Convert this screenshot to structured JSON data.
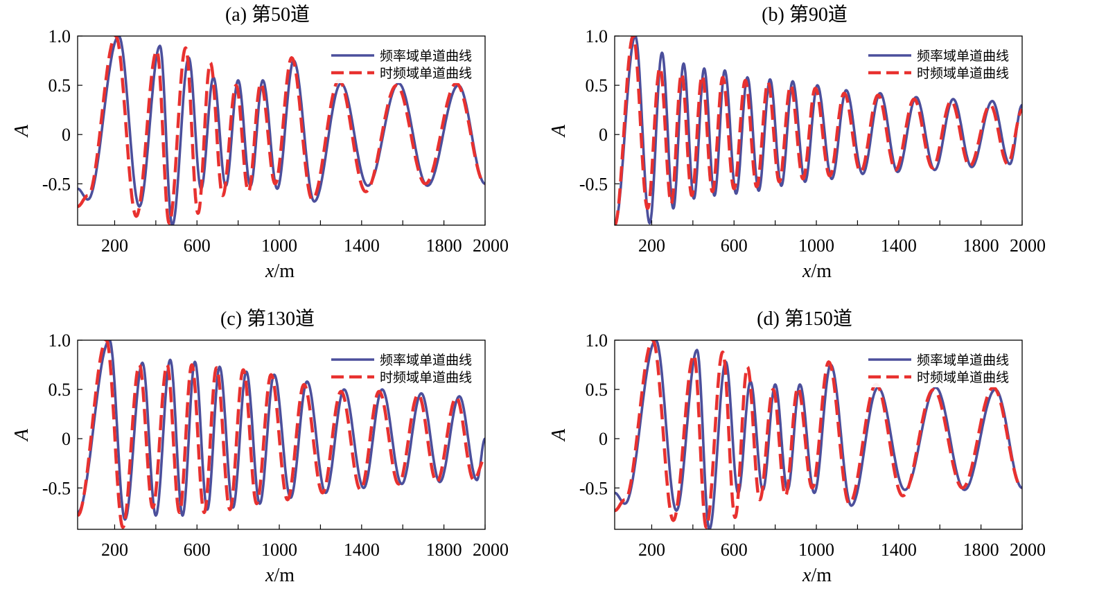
{
  "colors": {
    "freq_series": "#4b4f9c",
    "timefreq_series": "#e8312f",
    "axis": "#000000",
    "background": "#ffffff"
  },
  "chart_data": [
    {
      "type": "line",
      "title": "(a) 第50道",
      "xlabel": "x/m",
      "xlabel_var": "x",
      "xlabel_unit": "/m",
      "ylabel": "A",
      "xlim": [
        20,
        2000
      ],
      "ylim": [
        -0.92,
        1.0
      ],
      "xticks": [
        200,
        600,
        1000,
        1400,
        1800,
        2000
      ],
      "xticks_minor": [
        400,
        800,
        1200,
        1600
      ],
      "yticks": [
        1.0,
        0.5,
        0,
        -0.5
      ],
      "ytick_labels": [
        "1.0",
        "0.5",
        "0",
        "-0.5"
      ],
      "legend_position": "top-right",
      "series": [
        {
          "name": "频率域单道曲线",
          "style": "solid",
          "x": [
            20,
            70,
            220,
            320,
            420,
            480,
            560,
            620,
            680,
            740,
            800,
            860,
            920,
            990,
            1070,
            1170,
            1300,
            1430,
            1580,
            1720,
            1870,
            2000
          ],
          "y": [
            -0.55,
            -0.66,
            1.0,
            -0.73,
            0.9,
            -0.92,
            0.78,
            -0.55,
            0.58,
            -0.52,
            0.55,
            -0.52,
            0.55,
            -0.55,
            0.75,
            -0.68,
            0.52,
            -0.52,
            0.52,
            -0.52,
            0.5,
            -0.5
          ]
        },
        {
          "name": "时频域单道曲线",
          "style": "dashed",
          "x": [
            20,
            70,
            205,
            305,
            405,
            465,
            545,
            605,
            665,
            725,
            790,
            850,
            910,
            980,
            1060,
            1160,
            1290,
            1420,
            1570,
            1710,
            1860,
            2000
          ],
          "y": [
            -0.73,
            -0.62,
            1.0,
            -0.83,
            0.85,
            -0.9,
            0.88,
            -0.8,
            0.73,
            -0.62,
            0.5,
            -0.58,
            0.52,
            -0.5,
            0.78,
            -0.66,
            0.55,
            -0.58,
            0.5,
            -0.5,
            0.52,
            -0.5
          ]
        }
      ]
    },
    {
      "type": "line",
      "title": "(b) 第90道",
      "xlabel": "x/m",
      "xlabel_var": "x",
      "xlabel_unit": "/m",
      "ylabel": "A",
      "xlim": [
        20,
        2000
      ],
      "ylim": [
        -0.92,
        1.0
      ],
      "xticks": [
        200,
        600,
        1000,
        1400,
        1800,
        2000
      ],
      "xticks_minor": [
        400,
        800,
        1200,
        1600
      ],
      "yticks": [
        1.0,
        0.5,
        0,
        -0.5
      ],
      "ytick_labels": [
        "1.0",
        "0.5",
        "0",
        "-0.5"
      ],
      "legend_position": "top-right",
      "series": [
        {
          "name": "频率域单道曲线",
          "style": "solid",
          "x": [
            20,
            120,
            190,
            250,
            305,
            355,
            405,
            455,
            505,
            555,
            610,
            665,
            720,
            775,
            830,
            885,
            945,
            1005,
            1075,
            1145,
            1225,
            1310,
            1395,
            1485,
            1575,
            1665,
            1755,
            1855,
            1940,
            2000
          ],
          "y": [
            -0.92,
            1.0,
            -0.9,
            0.83,
            -0.75,
            0.72,
            -0.65,
            0.67,
            -0.62,
            0.65,
            -0.6,
            0.58,
            -0.57,
            0.56,
            -0.52,
            0.54,
            -0.48,
            0.5,
            -0.45,
            0.45,
            -0.4,
            0.42,
            -0.38,
            0.38,
            -0.36,
            0.36,
            -0.33,
            0.34,
            -0.3,
            0.3
          ]
        },
        {
          "name": "时频域单道曲线",
          "style": "dashed",
          "x": [
            20,
            110,
            180,
            240,
            295,
            345,
            395,
            445,
            495,
            545,
            600,
            655,
            710,
            765,
            820,
            875,
            935,
            995,
            1065,
            1135,
            1215,
            1300,
            1385,
            1475,
            1565,
            1655,
            1745,
            1845,
            1930,
            2000
          ],
          "y": [
            -0.92,
            1.0,
            -0.75,
            0.68,
            -0.7,
            0.62,
            -0.62,
            0.6,
            -0.58,
            0.58,
            -0.55,
            0.55,
            -0.53,
            0.53,
            -0.48,
            0.5,
            -0.45,
            0.47,
            -0.42,
            0.42,
            -0.38,
            0.4,
            -0.36,
            0.36,
            -0.34,
            0.34,
            -0.32,
            0.3,
            -0.3,
            0.25
          ]
        }
      ]
    },
    {
      "type": "line",
      "title": "(c) 第130道",
      "xlabel": "x/m",
      "xlabel_var": "x",
      "xlabel_unit": "/m",
      "ylabel": "A",
      "xlim": [
        20,
        2000
      ],
      "ylim": [
        -0.92,
        1.0
      ],
      "xticks": [
        200,
        600,
        1000,
        1400,
        1800,
        2000
      ],
      "xticks_minor": [
        400,
        800,
        1200,
        1600
      ],
      "yticks": [
        1.0,
        0.5,
        0,
        -0.5
      ],
      "ytick_labels": [
        "1.0",
        "0.5",
        "0",
        "-0.5"
      ],
      "legend_position": "top-right",
      "series": [
        {
          "name": "频率域单道曲线",
          "style": "solid",
          "x": [
            20,
            175,
            250,
            335,
            400,
            470,
            530,
            590,
            650,
            710,
            775,
            840,
            905,
            975,
            1055,
            1135,
            1225,
            1315,
            1410,
            1500,
            1595,
            1690,
            1780,
            1875,
            1960,
            2000
          ],
          "y": [
            -0.75,
            1.0,
            -0.82,
            0.77,
            -0.78,
            0.8,
            -0.78,
            0.78,
            -0.72,
            0.73,
            -0.7,
            0.68,
            -0.66,
            0.65,
            -0.6,
            0.58,
            -0.55,
            0.5,
            -0.5,
            0.5,
            -0.46,
            0.46,
            -0.44,
            0.43,
            -0.42,
            0.0
          ]
        },
        {
          "name": "时频域单道曲线",
          "style": "dashed",
          "x": [
            20,
            160,
            240,
            320,
            385,
            455,
            515,
            575,
            635,
            695,
            760,
            825,
            890,
            960,
            1040,
            1120,
            1210,
            1300,
            1395,
            1485,
            1580,
            1675,
            1765,
            1860,
            1945,
            2000
          ],
          "y": [
            -0.78,
            1.0,
            -0.9,
            0.75,
            -0.7,
            0.75,
            -0.75,
            0.75,
            -0.75,
            0.72,
            -0.72,
            0.7,
            -0.66,
            0.65,
            -0.62,
            0.55,
            -0.55,
            0.48,
            -0.52,
            0.48,
            -0.46,
            0.45,
            -0.44,
            0.42,
            -0.42,
            -0.2
          ]
        }
      ]
    },
    {
      "type": "line",
      "title": "(d) 第150道",
      "xlabel": "x/m",
      "xlabel_var": "x",
      "xlabel_unit": "/m",
      "ylabel": "A",
      "xlim": [
        20,
        2000
      ],
      "ylim": [
        -0.92,
        1.0
      ],
      "xticks": [
        200,
        600,
        1000,
        1400,
        1800,
        2000
      ],
      "xticks_minor": [
        400,
        800,
        1200,
        1600
      ],
      "yticks": [
        1.0,
        0.5,
        0,
        -0.5
      ],
      "ytick_labels": [
        "1.0",
        "0.5",
        "0",
        "-0.5"
      ],
      "legend_position": "top-right",
      "series": [
        {
          "name": "频率域单道曲线",
          "style": "solid",
          "x": [
            20,
            70,
            220,
            320,
            420,
            480,
            560,
            620,
            680,
            740,
            800,
            860,
            920,
            990,
            1070,
            1170,
            1300,
            1430,
            1580,
            1720,
            1870,
            2000
          ],
          "y": [
            -0.55,
            -0.66,
            1.0,
            -0.73,
            0.9,
            -0.92,
            0.78,
            -0.55,
            0.58,
            -0.52,
            0.55,
            -0.52,
            0.55,
            -0.55,
            0.75,
            -0.68,
            0.52,
            -0.52,
            0.52,
            -0.52,
            0.5,
            -0.5
          ]
        },
        {
          "name": "时频域单道曲线",
          "style": "dashed",
          "x": [
            20,
            70,
            205,
            305,
            405,
            465,
            545,
            605,
            665,
            725,
            790,
            850,
            910,
            980,
            1060,
            1160,
            1290,
            1420,
            1570,
            1710,
            1860,
            2000
          ],
          "y": [
            -0.73,
            -0.62,
            1.0,
            -0.83,
            0.85,
            -0.9,
            0.88,
            -0.8,
            0.73,
            -0.62,
            0.5,
            -0.58,
            0.52,
            -0.5,
            0.78,
            -0.66,
            0.55,
            -0.58,
            0.5,
            -0.5,
            0.52,
            -0.5
          ]
        }
      ]
    }
  ]
}
